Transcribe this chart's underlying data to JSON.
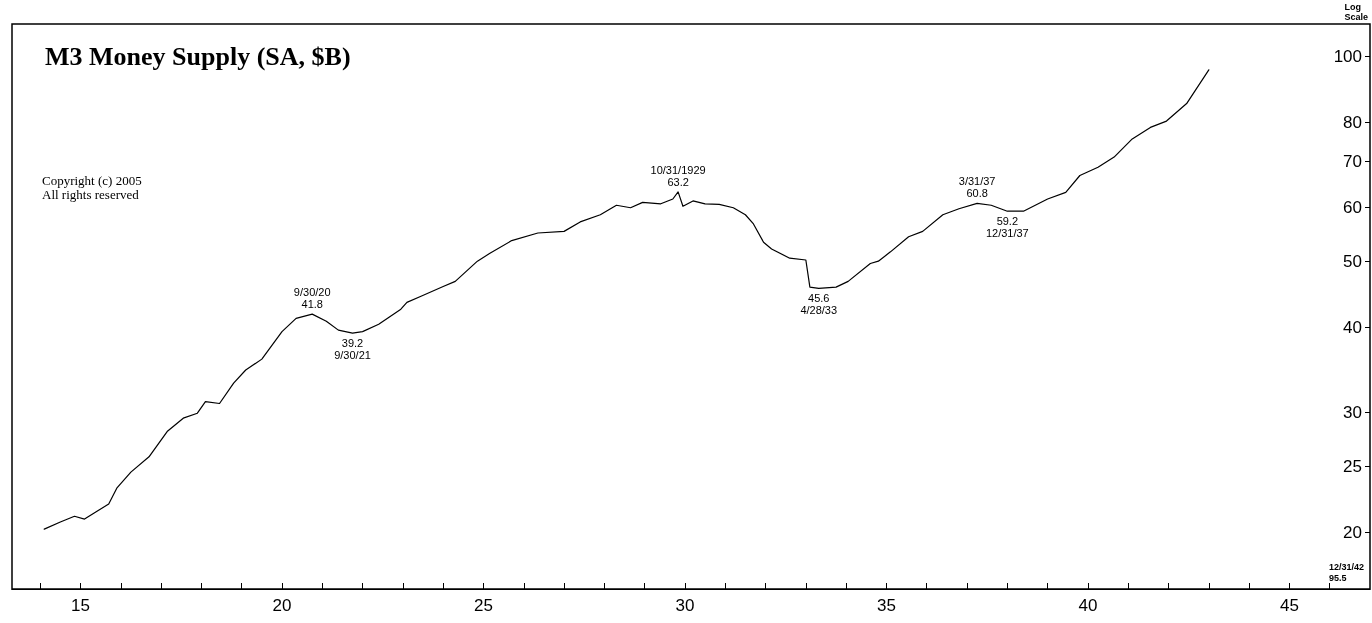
{
  "chart_data": {
    "type": "line",
    "title": "M3 Money Supply (SA, $B)",
    "ylabel": "Log Scale",
    "log": "y",
    "grid": false,
    "marker": "none",
    "line_style": "solid",
    "xlim": [
      1913.3,
      1947
    ],
    "ylim": [
      16.5,
      111.5
    ],
    "xticks": [
      {
        "value": 1914,
        "label": null
      },
      {
        "value": 1915,
        "label": "15"
      },
      {
        "value": 1916,
        "label": null
      },
      {
        "value": 1917,
        "label": null
      },
      {
        "value": 1918,
        "label": null
      },
      {
        "value": 1919,
        "label": null
      },
      {
        "value": 1920,
        "label": "20"
      },
      {
        "value": 1921,
        "label": null
      },
      {
        "value": 1922,
        "label": null
      },
      {
        "value": 1923,
        "label": null
      },
      {
        "value": 1924,
        "label": null
      },
      {
        "value": 1925,
        "label": "25"
      },
      {
        "value": 1926,
        "label": null
      },
      {
        "value": 1927,
        "label": null
      },
      {
        "value": 1928,
        "label": null
      },
      {
        "value": 1929,
        "label": null
      },
      {
        "value": 1930,
        "label": "30"
      },
      {
        "value": 1931,
        "label": null
      },
      {
        "value": 1932,
        "label": null
      },
      {
        "value": 1933,
        "label": null
      },
      {
        "value": 1934,
        "label": null
      },
      {
        "value": 1935,
        "label": "35"
      },
      {
        "value": 1936,
        "label": null
      },
      {
        "value": 1937,
        "label": null
      },
      {
        "value": 1938,
        "label": null
      },
      {
        "value": 1939,
        "label": null
      },
      {
        "value": 1940,
        "label": "40"
      },
      {
        "value": 1941,
        "label": null
      },
      {
        "value": 1942,
        "label": null
      },
      {
        "value": 1943,
        "label": null
      },
      {
        "value": 1944,
        "label": null
      },
      {
        "value": 1945,
        "label": "45"
      },
      {
        "value": 1946,
        "label": null
      }
    ],
    "yticks": [
      20,
      25,
      30,
      40,
      50,
      60,
      70,
      80,
      100
    ],
    "series": [
      {
        "color": "#000000",
        "x": [
          1914.1,
          1914.5,
          1914.85,
          1915.1,
          1915.7,
          1915.9,
          1916.25,
          1916.7,
          1917.15,
          1917.55,
          1917.9,
          1918.1,
          1918.45,
          1918.8,
          1919.1,
          1919.5,
          1920.0,
          1920.35,
          1920.75,
          1921.1,
          1921.4,
          1921.75,
          1922.0,
          1922.4,
          1922.95,
          1923.1,
          1923.45,
          1924.0,
          1924.3,
          1924.85,
          1925.15,
          1925.7,
          1926.35,
          1927.0,
          1927.4,
          1927.9,
          1928.3,
          1928.65,
          1928.95,
          1929.4,
          1929.7,
          1929.83,
          1929.95,
          1930.2,
          1930.5,
          1930.85,
          1931.2,
          1931.5,
          1931.7,
          1931.95,
          1932.15,
          1932.6,
          1933.0,
          1933.1,
          1933.32,
          1933.75,
          1934.05,
          1934.6,
          1934.8,
          1935.1,
          1935.55,
          1935.9,
          1936.4,
          1936.8,
          1937.25,
          1937.6,
          1938.0,
          1938.4,
          1939.0,
          1939.45,
          1939.8,
          1940.25,
          1940.65,
          1941.1,
          1941.55,
          1941.95,
          1942.45,
          1943.0
        ],
        "values": [
          20.2,
          20.7,
          21.1,
          20.9,
          22.0,
          23.2,
          24.5,
          25.8,
          28.1,
          29.4,
          29.9,
          31.1,
          30.9,
          33.1,
          34.6,
          35.9,
          39.4,
          41.2,
          41.8,
          40.8,
          39.6,
          39.2,
          39.4,
          40.4,
          42.5,
          43.5,
          44.4,
          45.9,
          46.7,
          50.0,
          51.3,
          53.6,
          55.0,
          55.3,
          57.1,
          58.5,
          60.4,
          59.9,
          61.0,
          60.7,
          61.7,
          63.2,
          60.2,
          61.3,
          60.7,
          60.6,
          59.9,
          58.5,
          56.7,
          53.3,
          52.1,
          50.5,
          50.2,
          45.8,
          45.6,
          45.8,
          46.7,
          49.6,
          50.0,
          51.6,
          54.3,
          55.3,
          58.5,
          59.7,
          60.8,
          60.4,
          59.2,
          59.2,
          61.7,
          63.1,
          66.8,
          68.7,
          71.1,
          75.6,
          78.6,
          80.3,
          85.2,
          95.5
        ]
      }
    ],
    "annotations": [
      {
        "text": "9/30/20\n41.8",
        "x": 1920.75,
        "y": 41.8
      },
      {
        "text": "39.2\n9/30/21",
        "x": 1921.75,
        "y": 39.2
      },
      {
        "text": "10/31/1929\n63.2",
        "x": 1929.83,
        "y": 63.2
      },
      {
        "text": "45.6\n4/28/33",
        "x": 1933.32,
        "y": 45.6
      },
      {
        "text": "3/31/37\n60.8",
        "x": 1937.25,
        "y": 60.8
      },
      {
        "text": "59.2\n12/31/37",
        "x": 1938.0,
        "y": 59.2
      },
      "12/31/42\n95.5",
      "Copyright (c) 2005",
      "All rights reserved"
    ]
  }
}
